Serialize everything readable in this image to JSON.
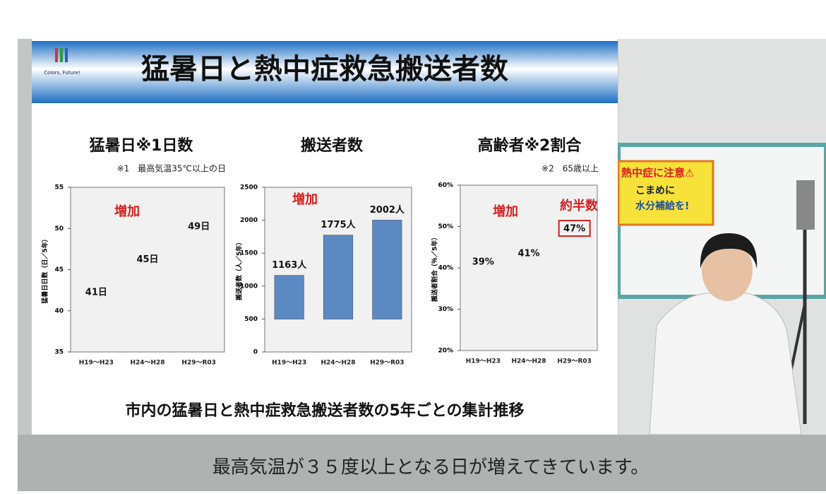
{
  "slide": {
    "title": "猛暑日と熱中症救急搬送者数",
    "logo_text": "Colors, Future!",
    "footer": "市内の猛暑日と熱中症救急搬送者数の5年ごとの集計推移"
  },
  "chart_data": [
    {
      "type": "bar",
      "title": "猛暑日※1日数",
      "note": "※1　最高気温35℃以上の日",
      "y_label": "猛暑日日数（日／5年）",
      "categories": [
        "H19～H23",
        "H24～H28",
        "H29～R03"
      ],
      "values": [
        41,
        45,
        49
      ],
      "value_labels": [
        "41日",
        "45日",
        "49日"
      ],
      "color": "#e3211c",
      "ylim": [
        35,
        55
      ],
      "yticks": [
        35,
        40,
        45,
        50,
        55
      ],
      "annotations": [
        "増加"
      ]
    },
    {
      "type": "bar",
      "title": "搬送者数",
      "y_label": "搬送者数（人／5年）",
      "categories": [
        "H19～H23",
        "H24～H28",
        "H29～R03"
      ],
      "values": [
        1163,
        1775,
        2002
      ],
      "value_labels": [
        "1163人",
        "1775人",
        "2002人"
      ],
      "color": "#5b8ac2",
      "ylim": [
        0,
        2500
      ],
      "yticks": [
        0,
        500,
        1000,
        1500,
        2000,
        2500
      ],
      "annotations": [
        "増加"
      ]
    },
    {
      "type": "bar",
      "title": "高齢者※2割合",
      "note": "※2　65歳以上",
      "y_label": "搬送者割合（％／5年）",
      "categories": [
        "H19～H23",
        "H24～H28",
        "H29～R03"
      ],
      "values": [
        39,
        41,
        47
      ],
      "value_labels": [
        "39%",
        "41%",
        "47%"
      ],
      "color": "#e3a583",
      "ylim": [
        20,
        60
      ],
      "yticks": [
        {
          "value": 20,
          "label": "20%"
        },
        {
          "value": 30,
          "label": "30%"
        },
        {
          "value": 40,
          "label": "40%"
        },
        {
          "value": 50,
          "label": "50%"
        },
        {
          "value": 60,
          "label": "60%"
        }
      ],
      "annotations": [
        "増加",
        "約半数"
      ]
    }
  ],
  "scene": {
    "poster": [
      "熱中症に注意⚠",
      "こまめに",
      "水分補給を!"
    ]
  },
  "caption": "最高気温が３５度以上となる日が増えてきています。"
}
